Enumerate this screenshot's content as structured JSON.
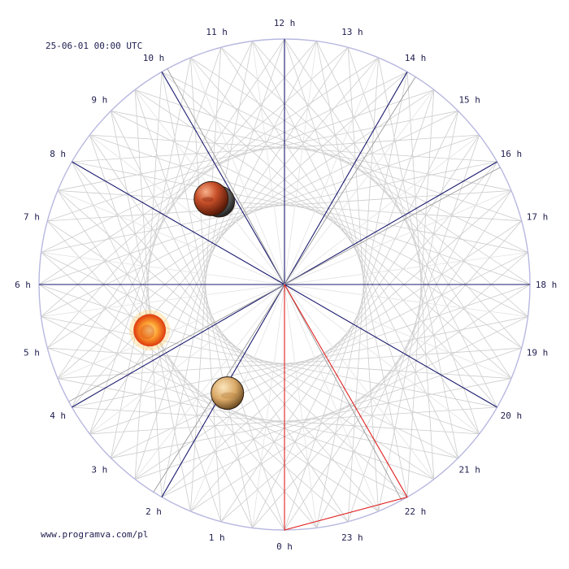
{
  "header": {
    "timestamp": "25-06-01 00:00 UTC"
  },
  "footer": {
    "site": "www.programva.com/pl"
  },
  "clock": {
    "hours": 24,
    "bottom_hour": 0,
    "hour_labels": [
      "0 h",
      "1 h",
      "2 h",
      "3 h",
      "4 h",
      "5 h",
      "6 h",
      "7 h",
      "8 h",
      "9 h",
      "10 h",
      "11 h",
      "12 h",
      "13 h",
      "14 h",
      "15 h",
      "16 h",
      "17 h",
      "18 h",
      "19 h",
      "20 h",
      "21 h",
      "22 h",
      "23 h"
    ],
    "dark_spokes_hours": [
      2,
      4,
      6,
      8,
      10,
      12,
      14,
      16,
      18,
      20
    ],
    "red_triangle_hour": 22,
    "colors": {
      "spoke": "#1a1a6e",
      "red": "#e02020",
      "ring": "#b8b8e0",
      "web": "#cccccc",
      "label": "#202050"
    }
  },
  "bodies": [
    {
      "name": "mars",
      "icon": "mars-icon",
      "hour": 9.3,
      "radius_frac": 0.46,
      "color": "#c04a22"
    },
    {
      "name": "moon",
      "icon": "moon-icon",
      "hour": 9.45,
      "radius_frac": 0.43,
      "color": "#7a7a7a"
    },
    {
      "name": "sun",
      "icon": "sun-icon",
      "hour": 4.75,
      "radius_frac": 0.58,
      "color": "#f07010"
    },
    {
      "name": "venus",
      "icon": "venus-icon",
      "hour": 1.85,
      "radius_frac": 0.5,
      "color": "#c89450"
    }
  ]
}
